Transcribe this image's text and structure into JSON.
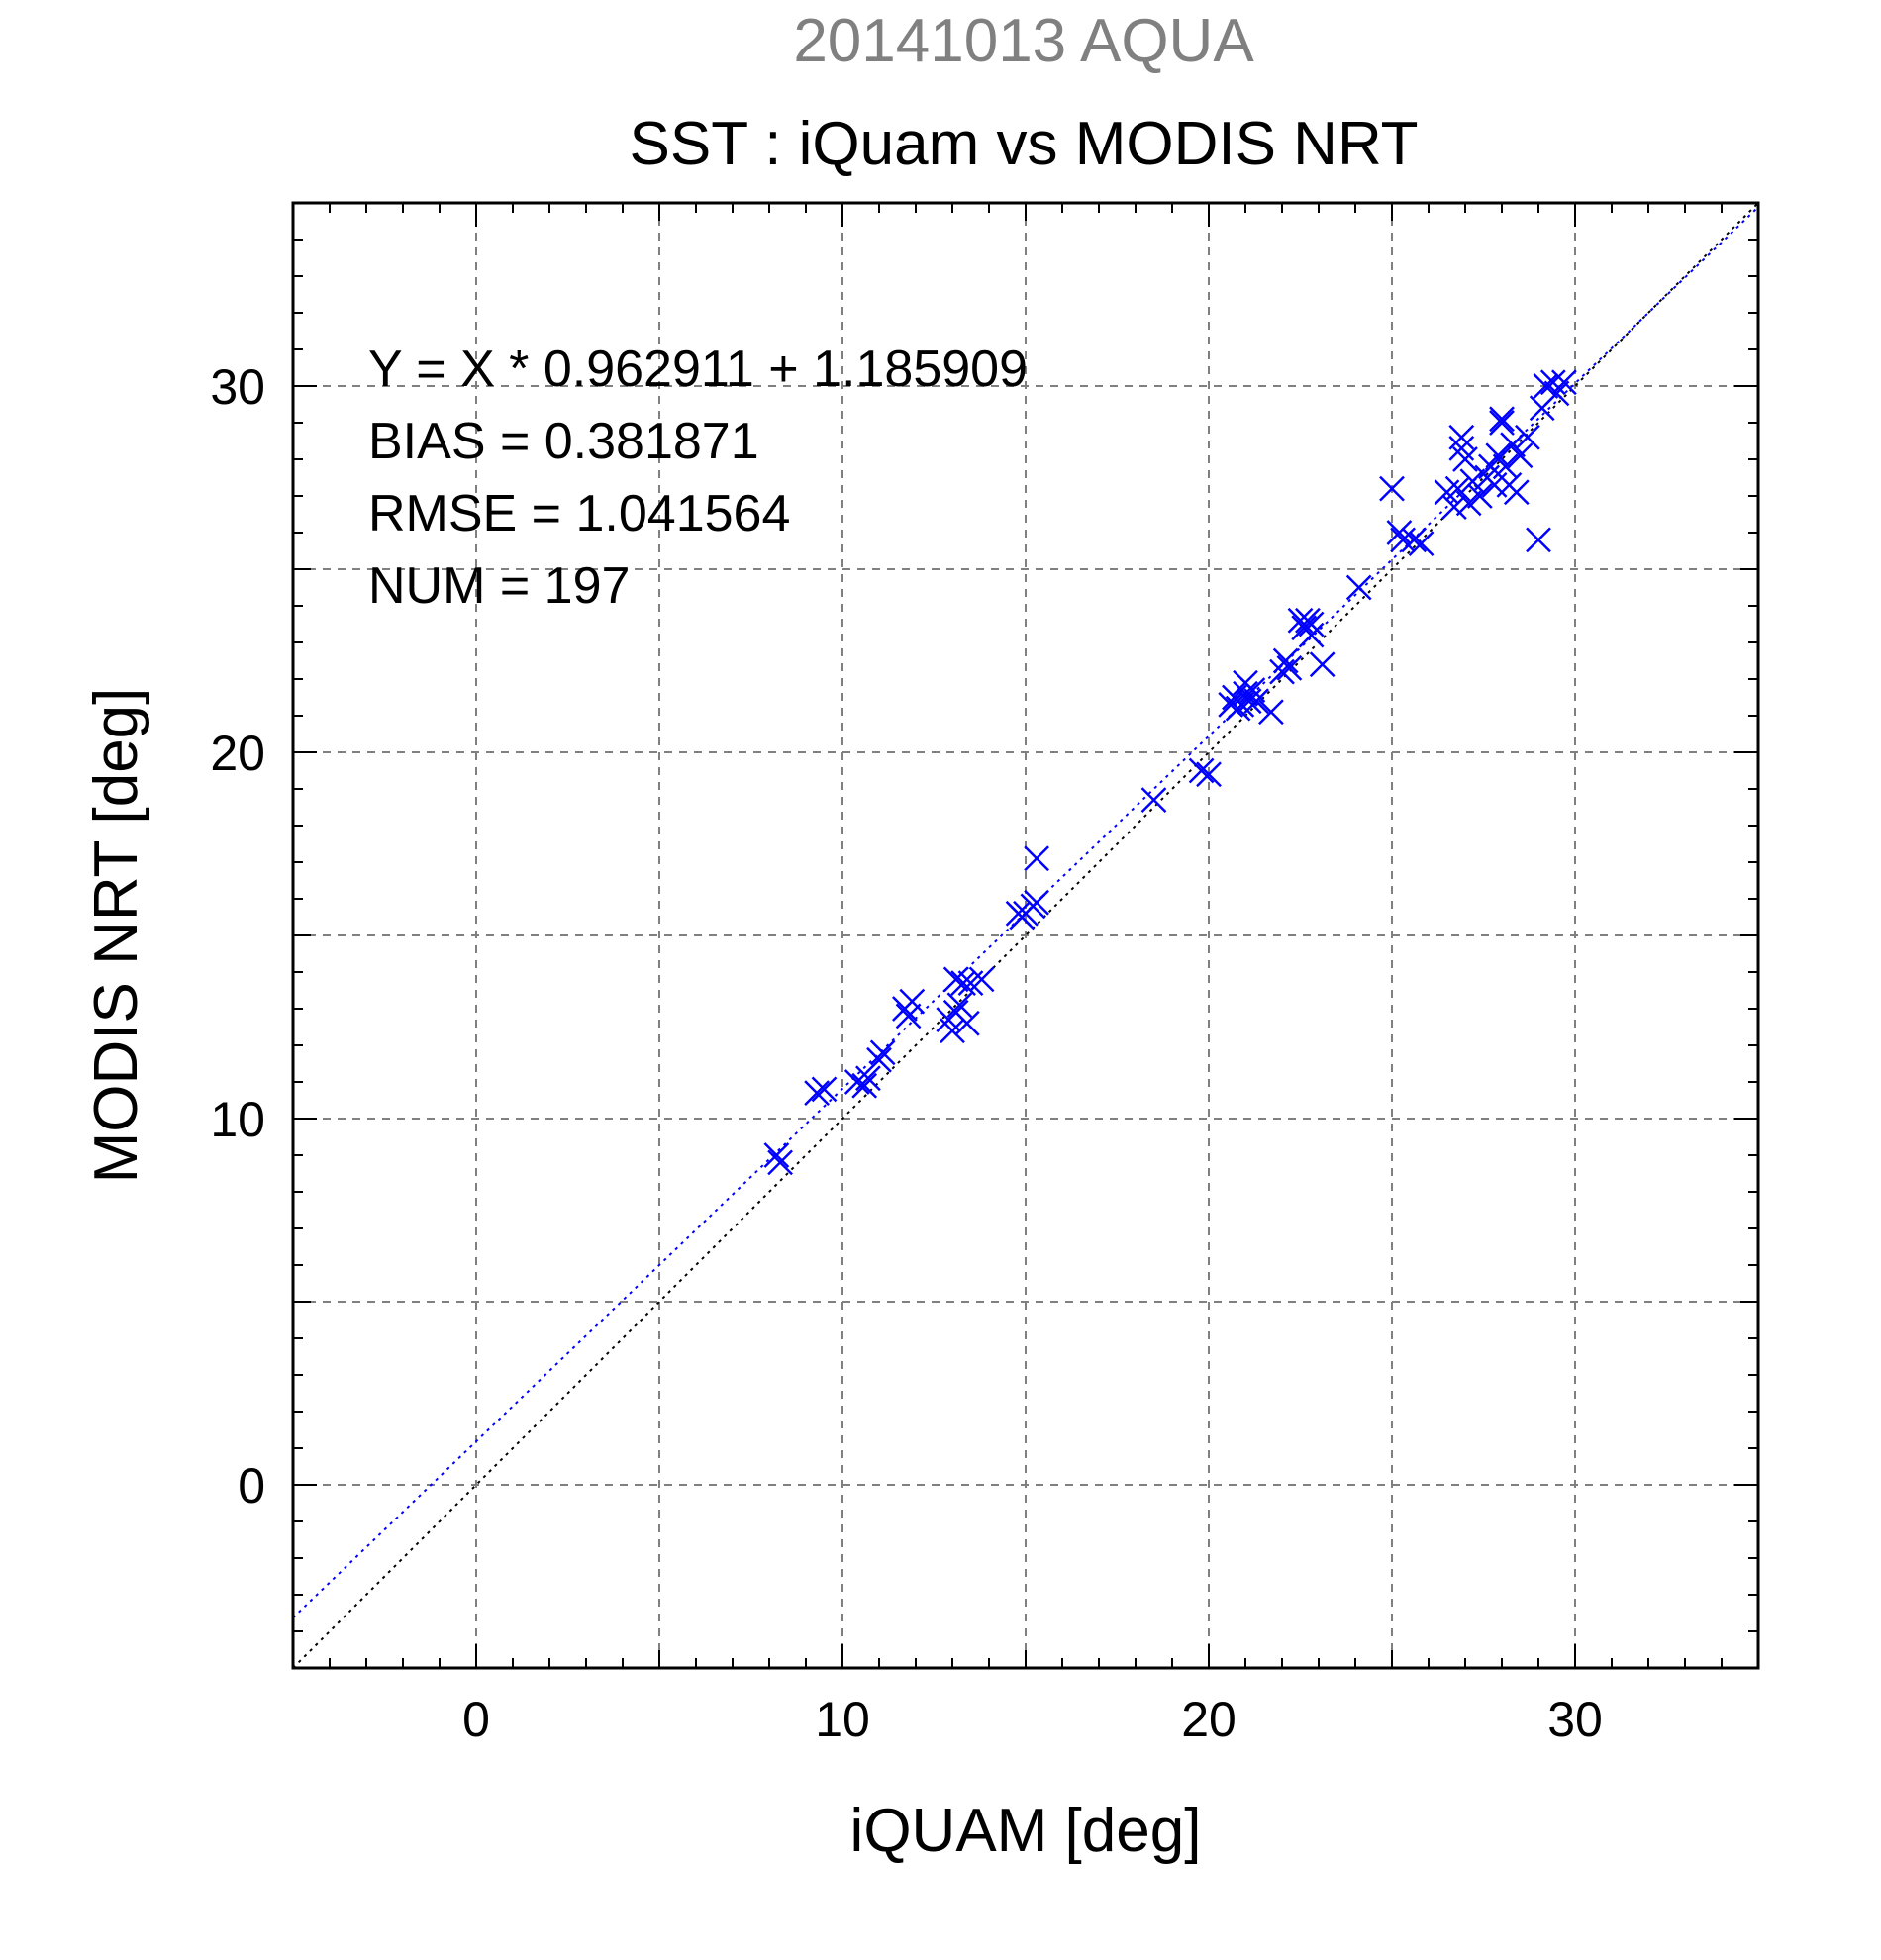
{
  "chart_data": {
    "type": "scatter",
    "supertitle": "20141013 AQUA",
    "title": "SST : iQuam vs MODIS NRT",
    "xlabel": "iQUAM [deg]",
    "ylabel": "MODIS NRT [deg]",
    "xlim": [
      -5,
      35
    ],
    "ylim": [
      -5,
      35
    ],
    "xticks": [
      0,
      10,
      20,
      30
    ],
    "yticks": [
      0,
      10,
      20,
      30
    ],
    "grid": true,
    "annotations": [
      "Y = X * 0.962911 + 1.185909",
      "BIAS = 0.381871",
      "RMSE = 1.041564",
      "NUM = 197"
    ],
    "regression": {
      "slope": 0.962911,
      "intercept": 1.185909
    },
    "colors": {
      "points": "#0000ff",
      "fit_line": "#0000ff",
      "identity_line": "#000000",
      "supertitle": "#808080",
      "grid": "#808080"
    },
    "series": [
      {
        "marker": "x",
        "x": [
          8.2,
          8.3,
          9.3,
          9.5,
          10.4,
          10.6,
          10.7,
          11.0,
          11.1,
          11.7,
          11.8,
          11.9,
          12.9,
          13.0,
          13.1,
          13.1,
          13.2,
          13.3,
          13.4,
          13.5,
          13.8,
          14.8,
          14.9,
          15.0,
          15.2,
          15.3,
          15.3,
          18.5,
          19.8,
          20.0,
          20.6,
          20.7,
          20.8,
          20.9,
          21.0,
          21.0,
          21.1,
          21.2,
          21.3,
          21.7,
          22.0,
          22.1,
          22.2,
          22.5,
          22.6,
          22.7,
          22.8,
          22.8,
          23.1,
          24.1,
          25.0,
          25.2,
          25.3,
          25.6,
          25.8,
          26.5,
          26.7,
          26.8,
          26.9,
          26.9,
          27.0,
          27.1,
          27.2,
          27.4,
          27.6,
          27.7,
          27.8,
          27.9,
          28.0,
          28.0,
          28.1,
          28.2,
          28.3,
          28.4,
          28.5,
          28.7,
          29.0,
          29.1,
          29.2,
          29.4,
          29.5,
          29.7
        ],
        "y": [
          9.0,
          8.8,
          10.7,
          10.8,
          11.0,
          10.9,
          11.1,
          11.6,
          11.8,
          13.0,
          12.8,
          13.2,
          12.7,
          12.4,
          13.8,
          12.9,
          13.1,
          13.7,
          12.6,
          13.7,
          13.8,
          15.6,
          15.5,
          15.6,
          15.8,
          15.9,
          17.1,
          18.7,
          19.5,
          19.4,
          21.3,
          21.5,
          21.2,
          21.3,
          21.6,
          21.9,
          21.4,
          21.7,
          21.4,
          21.1,
          22.2,
          22.5,
          22.3,
          23.6,
          23.4,
          23.6,
          23.2,
          23.5,
          22.4,
          24.5,
          27.2,
          26.0,
          25.8,
          25.8,
          25.7,
          27.1,
          26.7,
          27.2,
          28.3,
          28.6,
          28.0,
          26.8,
          27.4,
          27.0,
          27.5,
          27.8,
          27.3,
          28.1,
          29.1,
          29.0,
          27.8,
          27.3,
          28.4,
          27.1,
          28.1,
          28.6,
          25.8,
          29.4,
          30.0,
          30.1,
          29.8,
          30.1
        ]
      }
    ]
  }
}
